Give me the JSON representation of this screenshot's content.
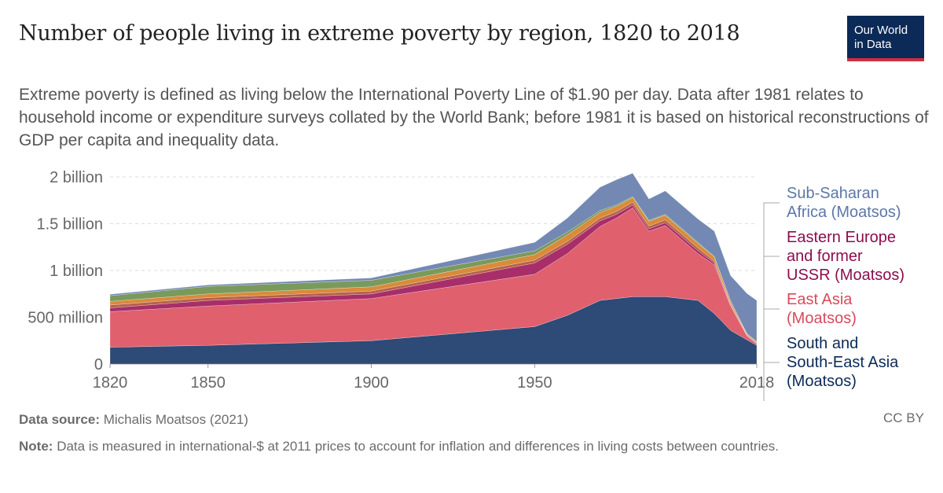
{
  "title": "Number of people living in extreme poverty by region, 1820 to 2018",
  "subtitle": "Extreme poverty is defined as living below the International Poverty Line of $1.90 per day. Data after 1981 relates to household income or expenditure surveys collated by the World Bank; before 1981 it is based on historical reconstructions of GDP per capita and inequality data.",
  "logo": {
    "line1": "Our World",
    "line2": "in Data"
  },
  "source_label": "Data source:",
  "source_text": "Michalis Moatsos (2021)",
  "license": "CC BY",
  "note_label": "Note:",
  "note_text": "Data is measured in international-$ at 2011 prices to account for inflation and differences in living costs between countries.",
  "chart_data": {
    "type": "area",
    "stacked": true,
    "grid": true,
    "legend_position": "right",
    "ylim": [
      0,
      2000000000
    ],
    "y_ticks": [
      {
        "value": 0,
        "label": "0"
      },
      {
        "value": 500000000,
        "label": "500 million"
      },
      {
        "value": 1000000000,
        "label": "1 billion"
      },
      {
        "value": 1500000000,
        "label": "1.5 billion"
      },
      {
        "value": 2000000000,
        "label": "2 billion"
      }
    ],
    "xlim": [
      1820,
      2018
    ],
    "x_ticks": [
      {
        "value": 1820,
        "label": "1820"
      },
      {
        "value": 1850,
        "label": "1850"
      },
      {
        "value": 1900,
        "label": "1900"
      },
      {
        "value": 1950,
        "label": "1950"
      },
      {
        "value": 2018,
        "label": "2018"
      }
    ],
    "x": [
      1820,
      1850,
      1900,
      1950,
      1960,
      1970,
      1975,
      1980,
      1985,
      1990,
      2000,
      2005,
      2010,
      2015,
      2018
    ],
    "series": [
      {
        "name": "South and South-East Asia (Moatsos)",
        "color": "#2e4a76",
        "label_color": "#0b2a57",
        "values": [
          180,
          200,
          250,
          400,
          520,
          680,
          700,
          720,
          720,
          720,
          680,
          540,
          360,
          260,
          200
        ]
      },
      {
        "name": "East Asia (Moatsos)",
        "color": "#e0606e",
        "label_color": "#d84b5c",
        "values": [
          380,
          420,
          450,
          560,
          660,
          790,
          860,
          950,
          700,
          760,
          500,
          520,
          260,
          40,
          15
        ]
      },
      {
        "name": "Eastern Europe and former USSR (Moatsos)",
        "color": "#a82e6a",
        "label_color": "#8c0d4f",
        "values": [
          40,
          60,
          50,
          120,
          100,
          60,
          40,
          30,
          25,
          30,
          30,
          20,
          10,
          5,
          5
        ]
      },
      {
        "color": "#b7614b",
        "values": [
          30,
          30,
          30,
          30,
          30,
          30,
          30,
          30,
          30,
          30,
          30,
          20,
          10,
          5,
          5
        ]
      },
      {
        "color": "#d98b3a",
        "values": [
          40,
          40,
          45,
          60,
          70,
          60,
          55,
          50,
          50,
          50,
          50,
          45,
          30,
          10,
          10
        ]
      },
      {
        "color": "#7a9a5c",
        "values": [
          60,
          80,
          70,
          40,
          30,
          20,
          15,
          10,
          10,
          10,
          10,
          5,
          5,
          5,
          5
        ]
      },
      {
        "name": "Sub-Saharan Africa (Moatsos)",
        "color": "#7389b4",
        "label_color": "#5d77a8",
        "values": [
          15,
          15,
          25,
          90,
          150,
          250,
          270,
          250,
          230,
          250,
          250,
          270,
          270,
          430,
          440
        ]
      }
    ],
    "value_unit": "millions of people",
    "legend_labels": [
      {
        "lines": [
          "Sub-Saharan",
          "Africa (Moatsos)"
        ],
        "color": "#5d77a8"
      },
      {
        "lines": [
          "Eastern Europe",
          "and former",
          "USSR (Moatsos)"
        ],
        "color": "#8c0d4f"
      },
      {
        "lines": [
          "East Asia",
          "(Moatsos)"
        ],
        "color": "#d84b5c"
      },
      {
        "lines": [
          "South and",
          "South-East Asia",
          "(Moatsos)"
        ],
        "color": "#0b2a57"
      }
    ]
  }
}
